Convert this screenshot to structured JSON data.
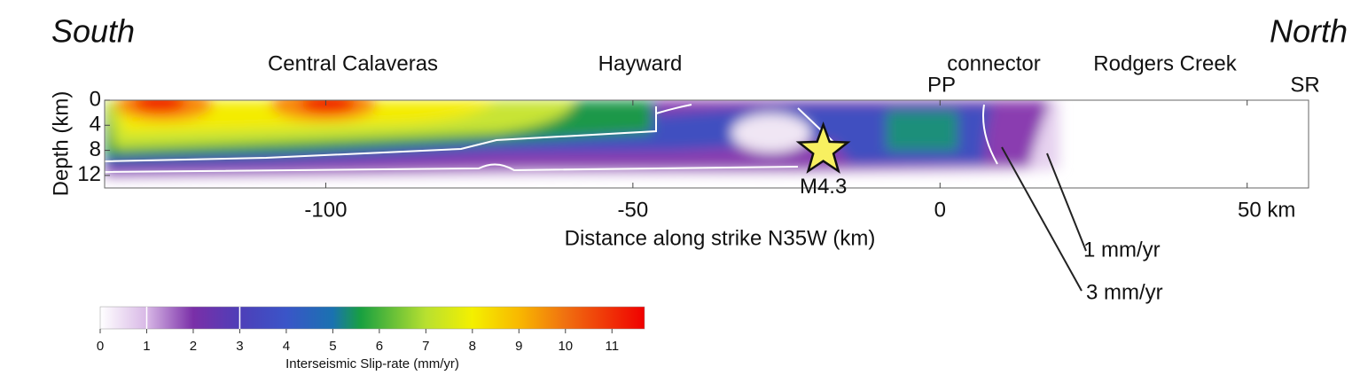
{
  "header": {
    "left": "South",
    "right": "North"
  },
  "chart_data": {
    "type": "slip-section",
    "x_label": "Distance along strike N35W (km)",
    "y_label": "Depth (km)",
    "xlim": [
      -136,
      60
    ],
    "xticks": [
      -100,
      -50,
      0,
      {
        "value": 50,
        "label": "50 km"
      }
    ],
    "ylim": [
      0,
      14
    ],
    "yticks": [
      0,
      4,
      8,
      12
    ],
    "segments": [
      "Central Calaveras",
      "Hayward",
      "connector",
      "Rodgers Creek"
    ],
    "stations": [
      "PP",
      "SR"
    ],
    "event": {
      "label": "M4.3",
      "x": -19,
      "depth": 8,
      "color": "#f8f060"
    },
    "contour_labels": [
      "1 mm/yr",
      "3 mm/yr"
    ],
    "colorbar": {
      "label": "Interseismic Slip-rate (mm/yr)",
      "lim": [
        0,
        11.7
      ],
      "ticks": [
        0,
        1,
        2,
        3,
        4,
        5,
        6,
        7,
        8,
        9,
        10,
        11
      ],
      "contours": [
        1,
        3
      ],
      "colormap": [
        {
          "value": 0,
          "color": "#ffffff"
        },
        {
          "value": 1,
          "color": "#d8b8e6"
        },
        {
          "value": 2,
          "color": "#7a2fa8"
        },
        {
          "value": 3,
          "color": "#4e3fb8"
        },
        {
          "value": 4,
          "color": "#3a55c8"
        },
        {
          "value": 5,
          "color": "#1a72b0"
        },
        {
          "value": 5.6,
          "color": "#18a040"
        },
        {
          "value": 7,
          "color": "#b8e030"
        },
        {
          "value": 8,
          "color": "#f4f000"
        },
        {
          "value": 9,
          "color": "#f8b800"
        },
        {
          "value": 10,
          "color": "#f07010"
        },
        {
          "value": 11.7,
          "color": "#f00000"
        }
      ]
    }
  }
}
